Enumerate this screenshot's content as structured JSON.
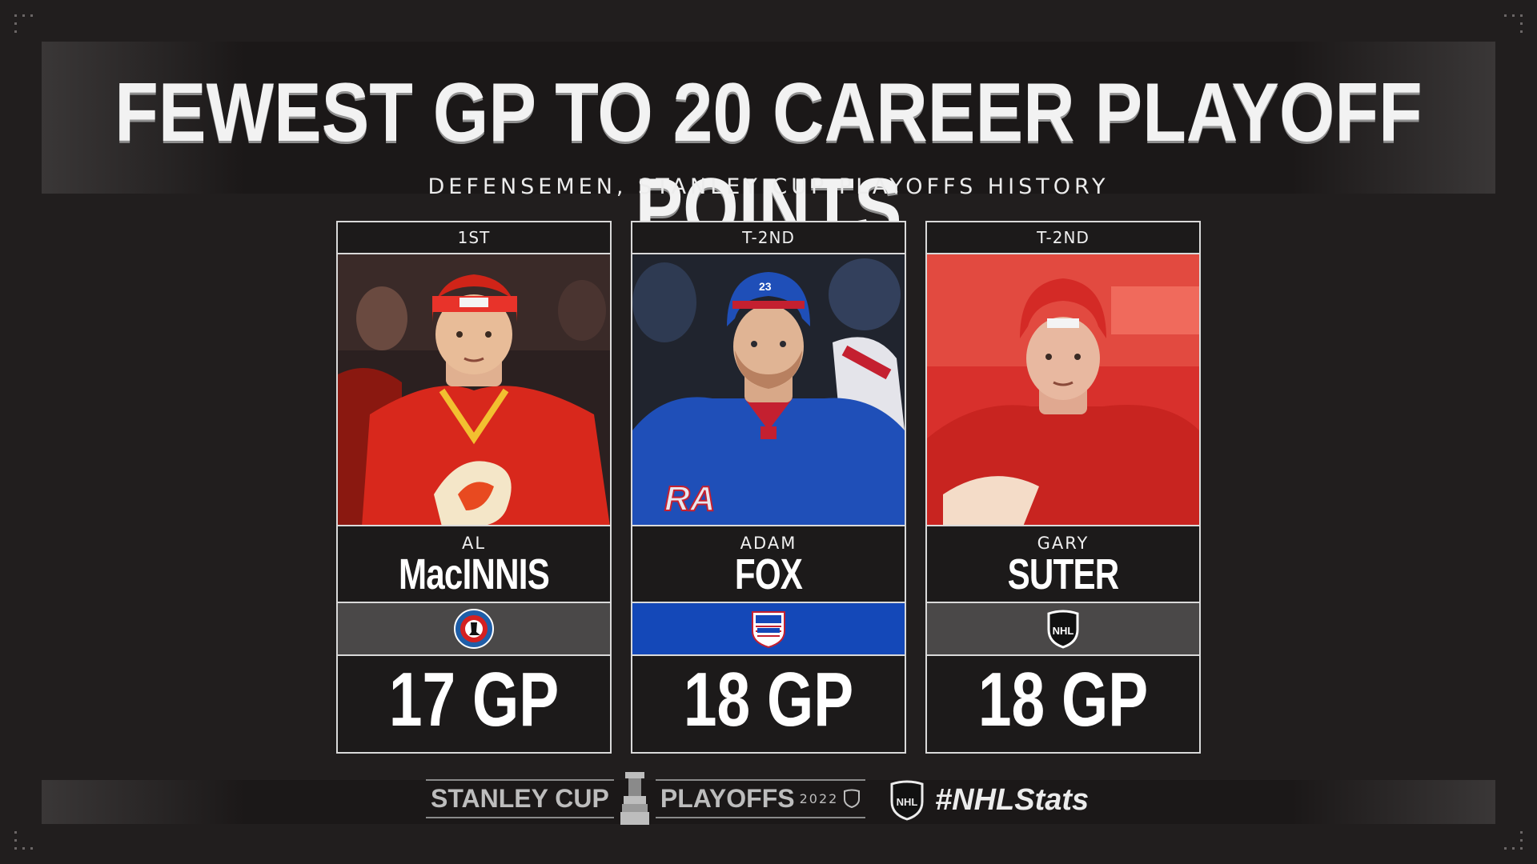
{
  "header": {
    "title": "FEWEST GP TO 20 CAREER PLAYOFF POINTS",
    "subtitle": "DEFENSEMEN, STANLEY CUP PLAYOFFS HISTORY"
  },
  "cards": [
    {
      "rank": "1ST",
      "first_name": "AL",
      "last_name": "MacINNIS",
      "logo": "hockey-hall-of-fame-logo",
      "stat": "17 GP",
      "team_color": "#4a4848"
    },
    {
      "rank": "T-2ND",
      "first_name": "ADAM",
      "last_name": "FOX",
      "logo": "new-york-rangers-logo",
      "stat": "18 GP",
      "team_color": "#1448b8"
    },
    {
      "rank": "T-2ND",
      "first_name": "GARY",
      "last_name": "SUTER",
      "logo": "nhl-shield-logo",
      "stat": "18 GP",
      "team_color": "#4a4848"
    }
  ],
  "footer": {
    "brand_left": "STANLEY CUP",
    "brand_right": "PLAYOFFS",
    "year": "2022",
    "hashtag": "#NHLStats"
  },
  "colors": {
    "background": "#211e1e",
    "rangers_blue": "#1448b8",
    "flames_red": "#d8281c",
    "wings_red": "#d42a26"
  }
}
